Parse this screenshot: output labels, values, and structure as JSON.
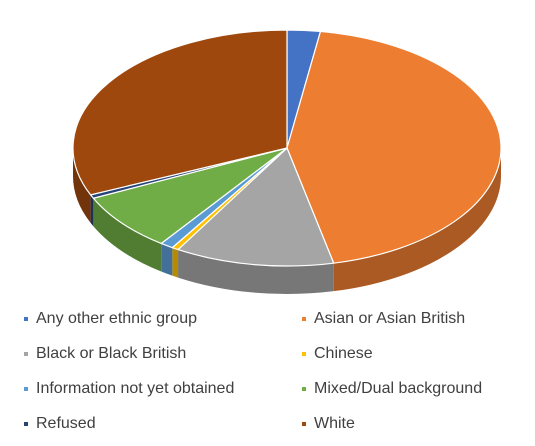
{
  "chart_data": {
    "type": "pie",
    "style": "3d",
    "title": "",
    "legend_position": "bottom",
    "slices": [
      {
        "label": "Any other ethnic group",
        "value": 2.5,
        "color": "#4472C4"
      },
      {
        "label": "Asian or Asian British",
        "value": 44.0,
        "color": "#ED7D31"
      },
      {
        "label": "Black or Black British",
        "value": 12.0,
        "color": "#A5A5A5"
      },
      {
        "label": "Chinese",
        "value": 0.5,
        "color": "#FFC000"
      },
      {
        "label": "Information not yet obtained",
        "value": 1.0,
        "color": "#5B9BD5"
      },
      {
        "label": "Mixed/Dual background",
        "value": 8.0,
        "color": "#70AD47"
      },
      {
        "label": "Refused",
        "value": 0.5,
        "color": "#264478"
      },
      {
        "label": "White",
        "value": 31.5,
        "color": "#9E480E"
      }
    ]
  }
}
